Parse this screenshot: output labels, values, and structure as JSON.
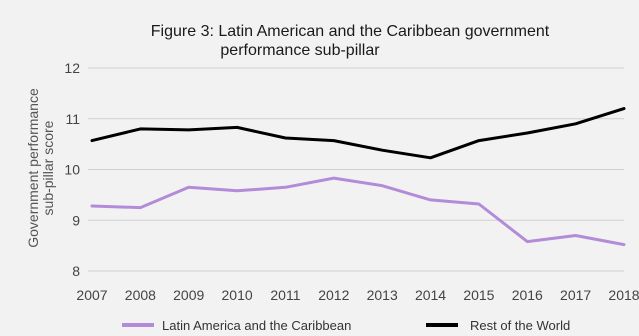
{
  "chart_data": {
    "type": "line",
    "title_line1": "Figure 3: Latin American and the Caribbean government",
    "title_line2": "performance sub-pillar",
    "ylabel_line1": "Government performance",
    "ylabel_line2": "sub-pillar score",
    "xlabel": "",
    "x": [
      "2007",
      "2008",
      "2009",
      "2010",
      "2011",
      "2012",
      "2013",
      "2014",
      "2015",
      "2016",
      "2017",
      "2018"
    ],
    "ylim": [
      8,
      12
    ],
    "yticks": [
      8,
      9,
      10,
      11,
      12
    ],
    "grid": true,
    "legend_position": "bottom",
    "series": [
      {
        "name": "Latin America and the Caribbean",
        "color": "#b38cd9",
        "values": [
          9.28,
          9.25,
          9.65,
          9.58,
          9.65,
          9.83,
          9.68,
          9.4,
          9.32,
          8.58,
          8.7,
          8.52
        ]
      },
      {
        "name": "Rest of the World",
        "color": "#000000",
        "values": [
          10.57,
          10.8,
          10.78,
          10.83,
          10.62,
          10.57,
          10.38,
          10.23,
          10.57,
          10.72,
          10.9,
          11.2
        ]
      }
    ]
  }
}
